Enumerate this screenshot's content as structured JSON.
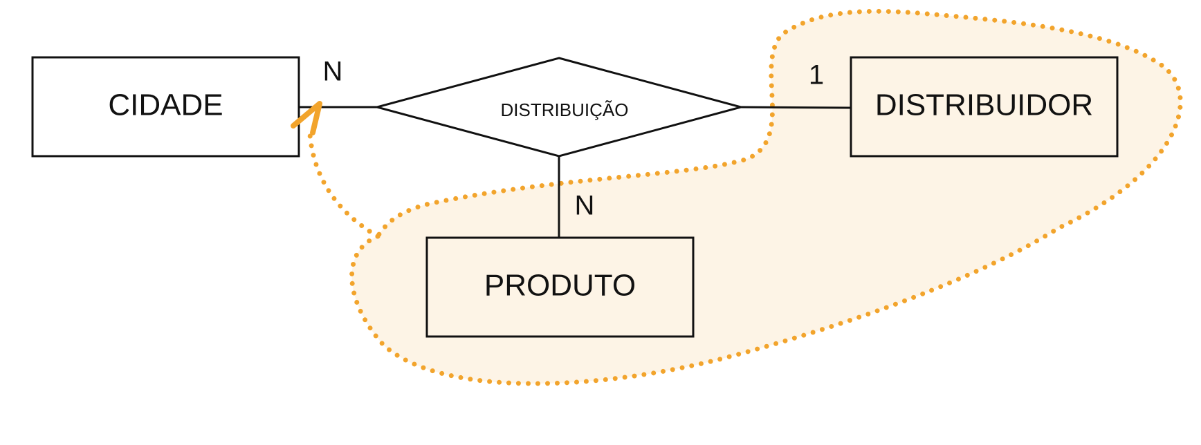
{
  "diagram": {
    "entities": {
      "cidade": "CIDADE",
      "distribuidor": "DISTRIBUIDOR",
      "produto": "PRODUTO"
    },
    "relationship": "DISTRIBUIÇÃO",
    "cardinalities": {
      "cidade": "N",
      "distribuidor": "1",
      "produto": "N"
    },
    "colors": {
      "stroke": "#111111",
      "highlight_stroke": "#f2a42c",
      "highlight_fill": "#fdf4e6",
      "background": "#ffffff"
    }
  }
}
